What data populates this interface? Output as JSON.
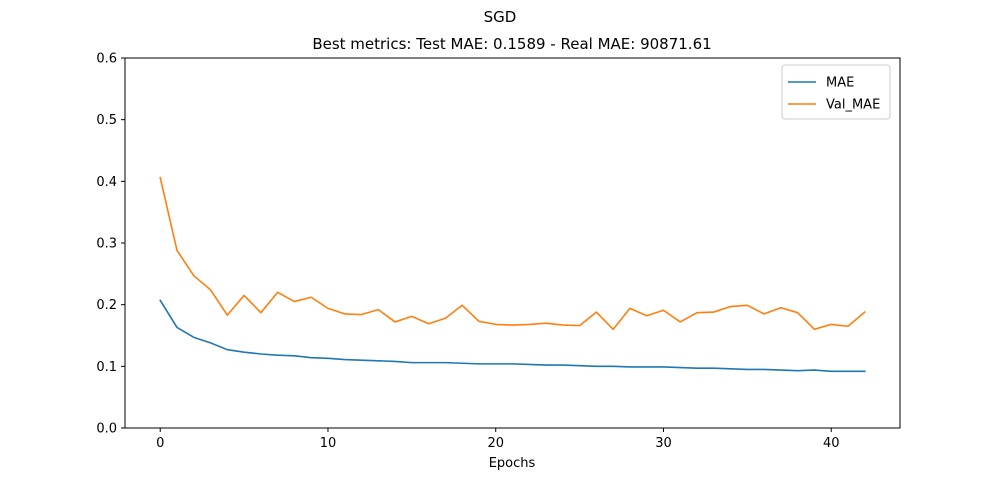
{
  "chart_data": {
    "type": "line",
    "suptitle": "SGD",
    "title": "Best metrics: Test MAE: 0.1589 - Real MAE: 90871.61",
    "xlabel": "Epochs",
    "ylabel": "",
    "xlim": [
      -2.1,
      44.1
    ],
    "ylim": [
      0,
      0.6
    ],
    "xticks": [
      0,
      10,
      20,
      30,
      40
    ],
    "yticks": [
      0.0,
      0.1,
      0.2,
      0.3,
      0.4,
      0.5,
      0.6
    ],
    "grid": false,
    "legend_position": "top-right",
    "x": [
      0,
      1,
      2,
      3,
      4,
      5,
      6,
      7,
      8,
      9,
      10,
      11,
      12,
      13,
      14,
      15,
      16,
      17,
      18,
      19,
      20,
      21,
      22,
      23,
      24,
      25,
      26,
      27,
      28,
      29,
      30,
      31,
      32,
      33,
      34,
      35,
      36,
      37,
      38,
      39,
      40,
      41,
      42
    ],
    "series": [
      {
        "name": "MAE",
        "color": "#1f77b4",
        "values": [
          0.207,
          0.163,
          0.147,
          0.138,
          0.127,
          0.123,
          0.12,
          0.118,
          0.117,
          0.114,
          0.113,
          0.111,
          0.11,
          0.109,
          0.108,
          0.106,
          0.106,
          0.106,
          0.105,
          0.104,
          0.104,
          0.104,
          0.103,
          0.102,
          0.102,
          0.101,
          0.1,
          0.1,
          0.099,
          0.099,
          0.099,
          0.098,
          0.097,
          0.097,
          0.096,
          0.095,
          0.095,
          0.094,
          0.093,
          0.094,
          0.092,
          0.092,
          0.092
        ]
      },
      {
        "name": "Val_MAE",
        "color": "#ff7f0e",
        "values": [
          0.406,
          0.288,
          0.247,
          0.224,
          0.183,
          0.215,
          0.187,
          0.22,
          0.205,
          0.212,
          0.194,
          0.185,
          0.184,
          0.192,
          0.172,
          0.181,
          0.169,
          0.178,
          0.199,
          0.173,
          0.168,
          0.167,
          0.168,
          0.17,
          0.167,
          0.166,
          0.188,
          0.16,
          0.194,
          0.182,
          0.191,
          0.172,
          0.187,
          0.188,
          0.197,
          0.199,
          0.185,
          0.195,
          0.187,
          0.16,
          0.168,
          0.165,
          0.188
        ]
      }
    ]
  }
}
